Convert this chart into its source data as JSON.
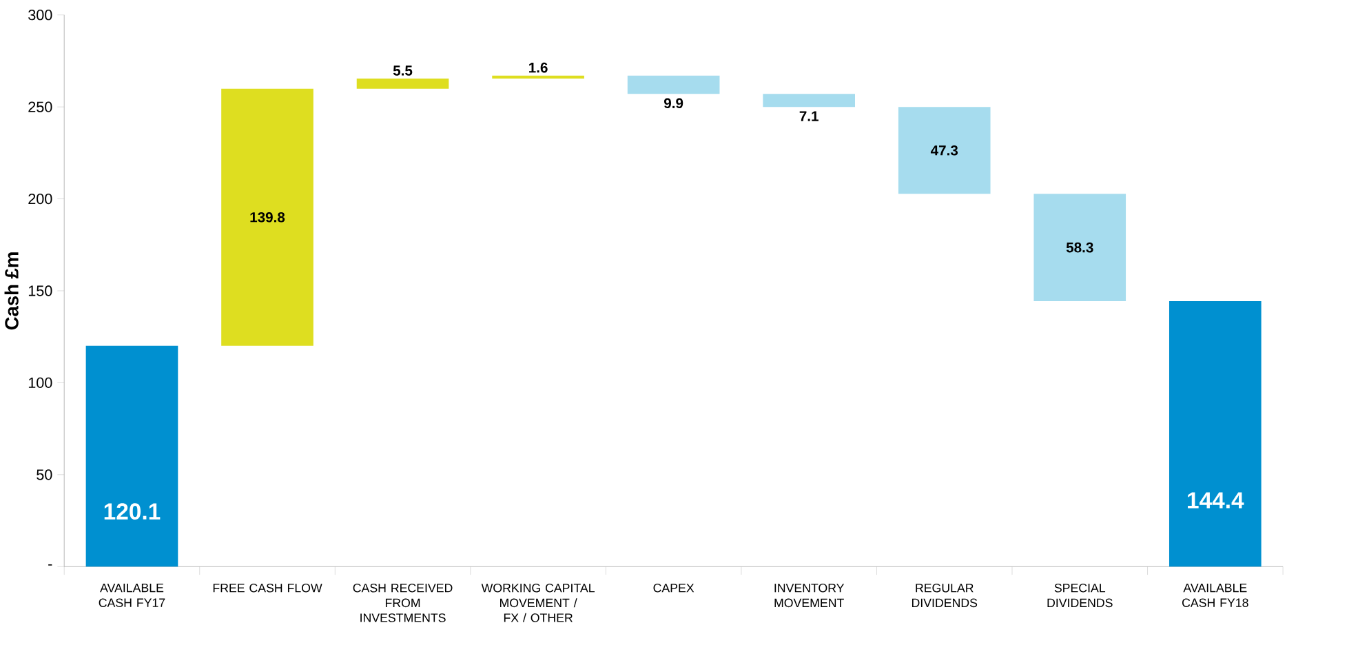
{
  "chart_data": {
    "type": "bar",
    "ylabel": "Cash £m",
    "categories": [
      "AVAILABLE CASH FY17",
      "FREE CASH FLOW",
      "CASH RECEIVED FROM INVESTMENTS",
      "WORKING CAPITAL MOVEMENT / FX / OTHER",
      "CAPEX",
      "INVENTORY MOVEMENT",
      "REGULAR DIVIDENDS",
      "SPECIAL DIVIDENDS",
      "AVAILABLE CASH FY18"
    ],
    "values": [
      120.1,
      139.8,
      5.5,
      1.6,
      -9.9,
      -7.1,
      -47.3,
      -58.3,
      144.4
    ],
    "base": [
      0,
      120.1,
      259.9,
      265.4,
      267.0,
      257.1,
      250.0,
      202.7,
      0
    ],
    "colors": [
      "#0090d0",
      "#dede20",
      "#dede20",
      "#dede20",
      "#a6dcee",
      "#a6dcee",
      "#a6dcee",
      "#a6dcee",
      "#0090d0"
    ],
    "value_labels": [
      "120.1",
      "139.8",
      "5.5",
      "1.6",
      "9.9",
      "7.1",
      "47.3",
      "58.3",
      "144.4"
    ],
    "ylim": [
      0,
      300
    ],
    "yticks": [
      {
        "value": 0,
        "label": "-"
      },
      50,
      100,
      150,
      200,
      250,
      300
    ]
  }
}
